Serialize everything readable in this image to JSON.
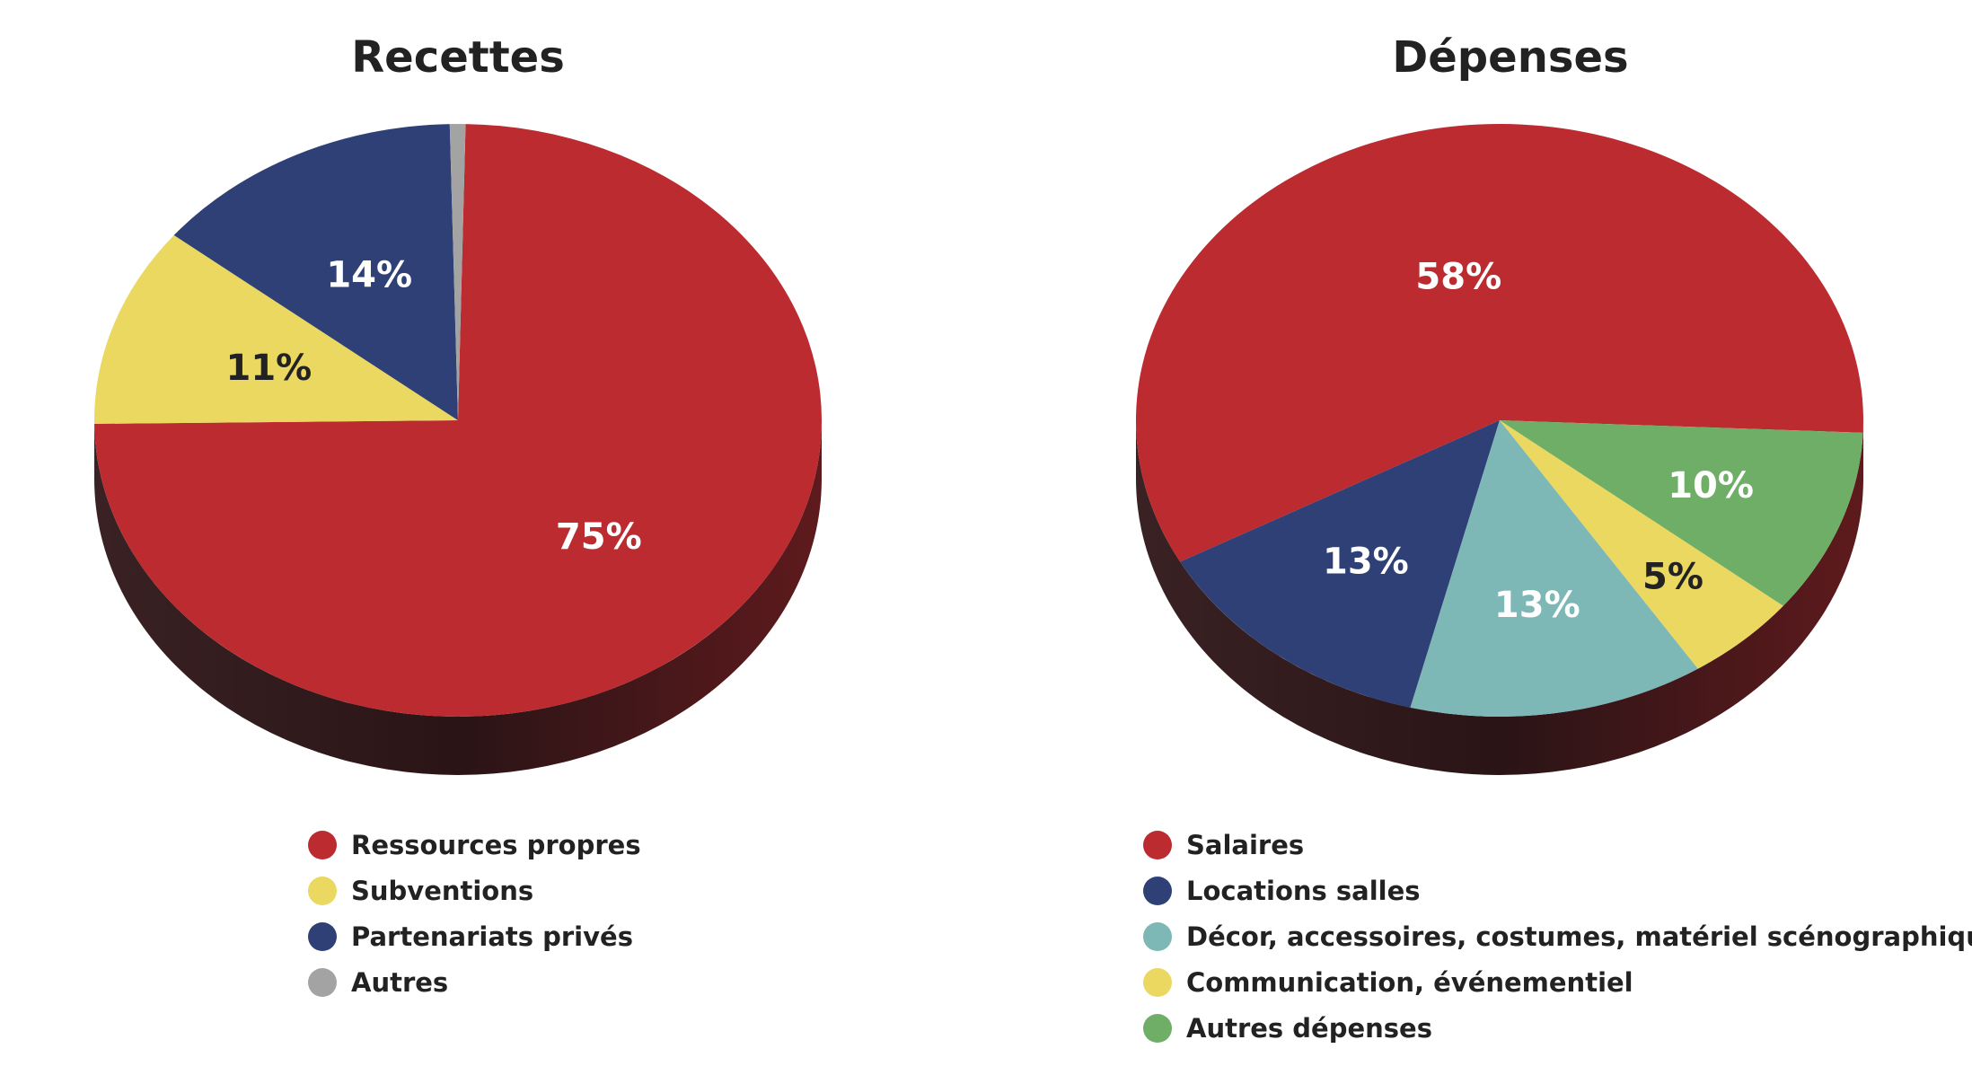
{
  "chart_data": [
    {
      "type": "pie",
      "title": "Recettes",
      "slices": [
        {
          "label": "Ressources propres",
          "value": 75,
          "value_label": "75%",
          "color": "#bb2b30",
          "label_color": "#ffffff"
        },
        {
          "label": "Subventions",
          "value": 11,
          "value_label": "11%",
          "color": "#ead861",
          "label_color": "#222222"
        },
        {
          "label": "Partenariats privés",
          "value": 14,
          "value_label": "14%",
          "color": "#2f4076",
          "label_color": "#ffffff"
        },
        {
          "label": "Autres",
          "value": 0.7,
          "value_label": "",
          "color": "#a3a3a3",
          "label_color": "#222222"
        }
      ],
      "legend_position": "bottom"
    },
    {
      "type": "pie",
      "title": "Dépenses",
      "slices": [
        {
          "label": "Salaires",
          "value": 58,
          "value_label": "58%",
          "color": "#bb2b30",
          "label_color": "#ffffff"
        },
        {
          "label": "Locations salles",
          "value": 13,
          "value_label": "13%",
          "color": "#2f4076",
          "label_color": "#ffffff"
        },
        {
          "label": "Décor, accessoires, costumes, matériel scénographique",
          "value": 13,
          "value_label": "13%",
          "color": "#7db8b7",
          "label_color": "#ffffff"
        },
        {
          "label": "Communication, événementiel",
          "value": 5,
          "value_label": "5%",
          "color": "#ead861",
          "label_color": "#222222"
        },
        {
          "label": "Autres dépenses",
          "value": 10,
          "value_label": "10%",
          "color": "#6fae67",
          "label_color": "#ffffff"
        }
      ],
      "legend_position": "bottom"
    }
  ]
}
